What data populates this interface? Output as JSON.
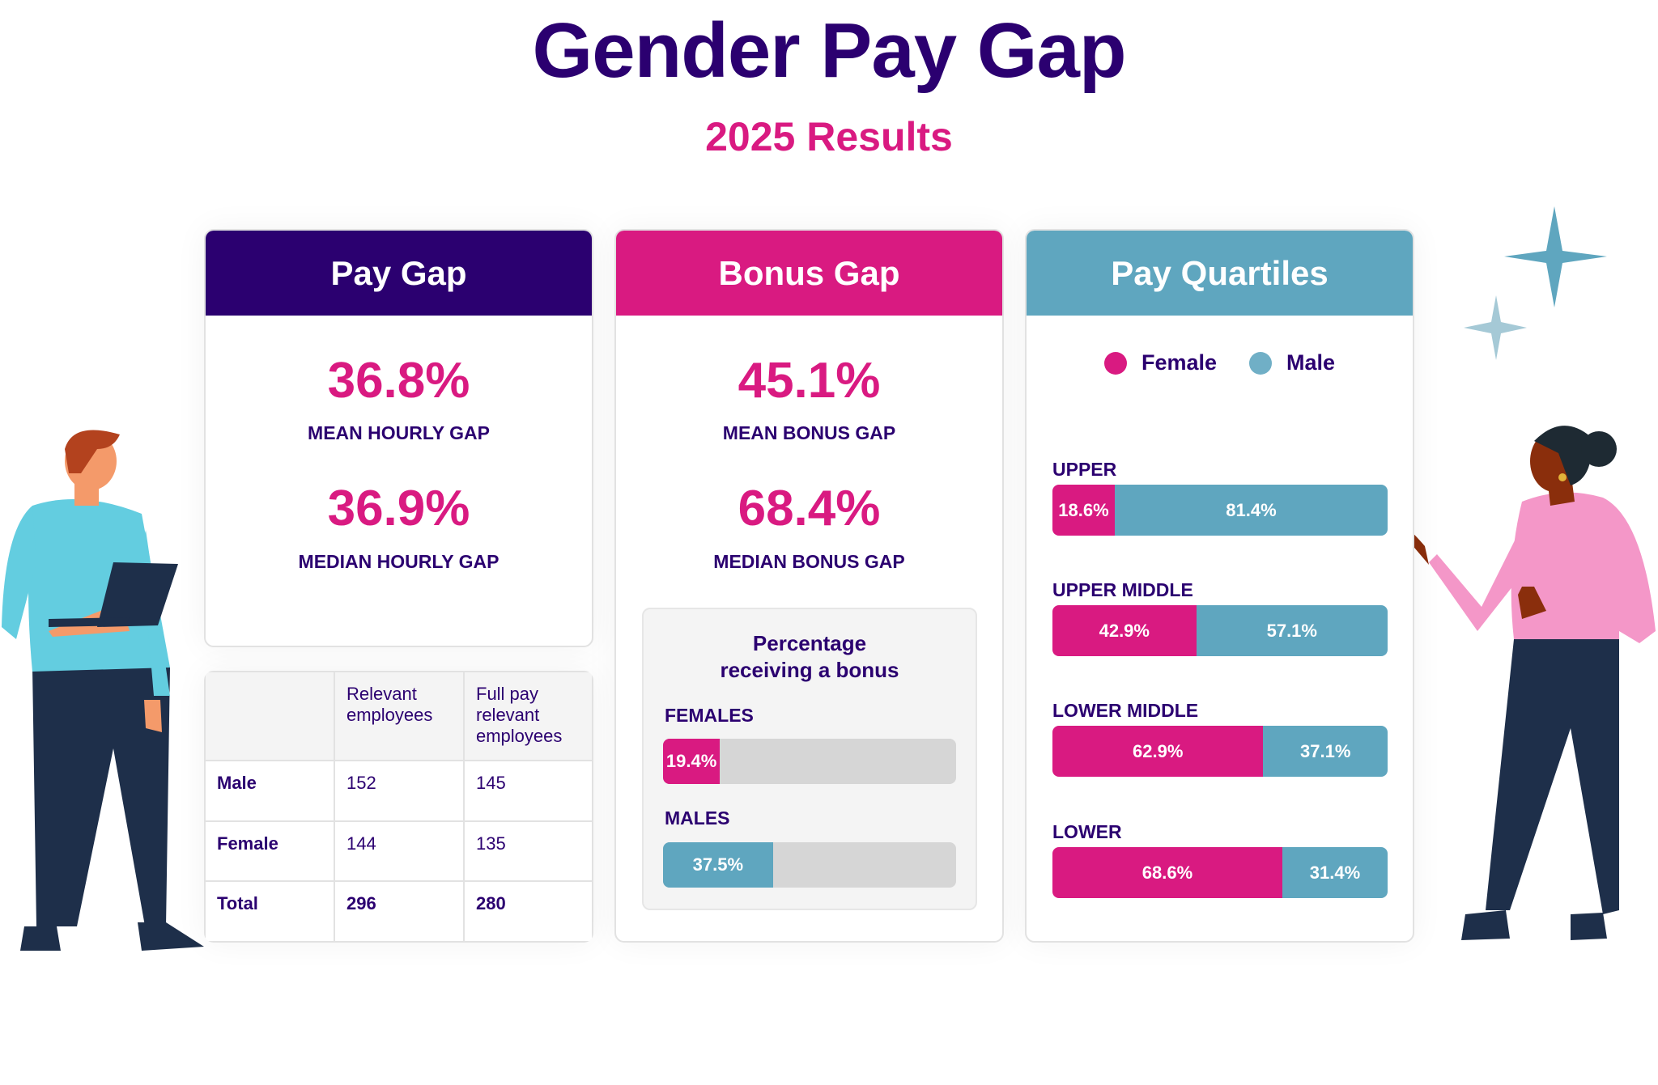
{
  "title": "Gender Pay Gap",
  "subtitle": "2025 Results",
  "colors": {
    "navy": "#2b0070",
    "pink": "#d91a81",
    "teal": "#5fa6bf",
    "grey": "#d6d6d6"
  },
  "pay_gap": {
    "heading": "Pay Gap",
    "mean_value": "36.8%",
    "mean_label": "MEAN HOURLY GAP",
    "median_value": "36.9%",
    "median_label": "MEDIAN HOURLY GAP"
  },
  "table": {
    "headers": [
      "",
      "Relevant employees",
      "Full pay relevant employees"
    ],
    "rows": [
      [
        "Male",
        "152",
        "145"
      ],
      [
        "Female",
        "144",
        "135"
      ],
      [
        "Total",
        "296",
        "280"
      ]
    ]
  },
  "bonus_gap": {
    "heading": "Bonus Gap",
    "mean_value": "45.1%",
    "mean_label": "MEAN BONUS GAP",
    "median_value": "68.4%",
    "median_label": "MEDIAN BONUS GAP",
    "receiving_title": "Percentage receiving a bonus",
    "females": {
      "label": "FEMALES",
      "value": "19.4%",
      "percent": 19.4
    },
    "males": {
      "label": "MALES",
      "value": "37.5%",
      "percent": 37.5
    }
  },
  "quartiles": {
    "heading": "Pay Quartiles",
    "legend": {
      "female": "Female",
      "male": "Male"
    },
    "items": [
      {
        "label": "UPPER",
        "female": "18.6%",
        "male": "81.4%",
        "female_pct": 18.6
      },
      {
        "label": "UPPER MIDDLE",
        "female": "42.9%",
        "male": "57.1%",
        "female_pct": 42.9
      },
      {
        "label": "LOWER MIDDLE",
        "female": "62.9%",
        "male": "37.1%",
        "female_pct": 62.9
      },
      {
        "label": "LOWER",
        "female": "68.6%",
        "male": "31.4%",
        "female_pct": 68.6
      }
    ]
  }
}
